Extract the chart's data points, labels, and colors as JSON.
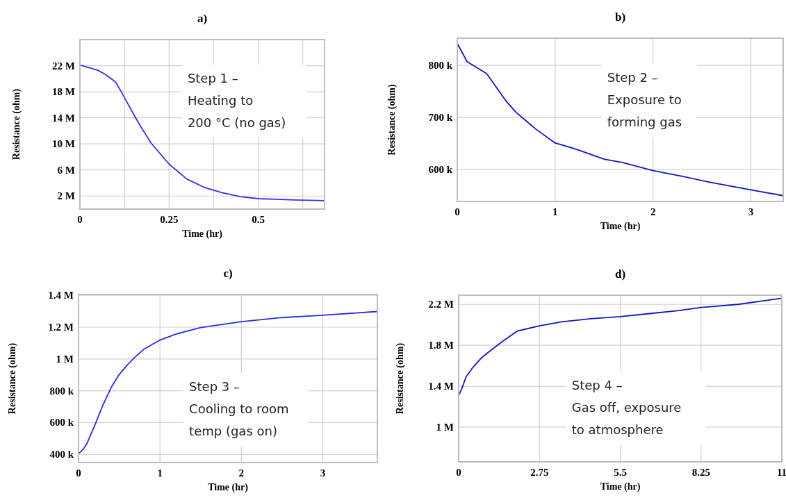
{
  "chart_data": [
    {
      "type": "line",
      "title": "a)",
      "xlabel": "Time (hr)",
      "ylabel": "Resistance (ohm)",
      "annotations": [
        "Step 1 –\nHeating to\n200 °C (no gas)"
      ],
      "grid": true,
      "xlim": [
        0,
        0.686
      ],
      "ylim": [
        0,
        26000000
      ],
      "xticks": [
        0,
        {
          "value": 0.125,
          "label": null
        },
        0.25,
        {
          "value": 0.375,
          "label": null
        },
        0.5,
        {
          "value": 0.625,
          "label": null
        }
      ],
      "yticks": [
        {
          "value": 2000000,
          "label": "2 M"
        },
        {
          "value": 6000000,
          "label": "6 M"
        },
        {
          "value": 10000000,
          "label": "10 M"
        },
        {
          "value": 14000000,
          "label": "14 M"
        },
        {
          "value": 18000000,
          "label": "18 M"
        },
        {
          "value": 22000000,
          "label": "22 M"
        }
      ],
      "series": [
        {
          "color": "#3232dc",
          "x": [
            0,
            0.05,
            0.07,
            0.1,
            0.12,
            0.15,
            0.17,
            0.2,
            0.25,
            0.3,
            0.35,
            0.4,
            0.45,
            0.5,
            0.55,
            0.6,
            0.686
          ],
          "values": [
            22100000,
            21300000,
            20700000,
            19500000,
            17600000,
            14600000,
            12700000,
            10100000,
            6900000,
            4600000,
            3300000,
            2500000,
            1900000,
            1600000,
            1500000,
            1400000,
            1300000
          ]
        }
      ]
    },
    {
      "type": "line",
      "title": "b)",
      "xlabel": "Time (hr)",
      "ylabel": "Resistance (ohm)",
      "annotations": [
        "Step 2 –\nExposure to\nforming gas"
      ],
      "grid": true,
      "xlim": [
        0,
        3.33
      ],
      "ylim": [
        539000,
        852000
      ],
      "xticks": [
        0,
        1,
        2,
        3
      ],
      "yticks": [
        {
          "value": 600000,
          "label": "600 k"
        },
        {
          "value": 700000,
          "label": "700 k"
        },
        {
          "value": 800000,
          "label": "800 k"
        }
      ],
      "series": [
        {
          "color": "#1414c0",
          "x": [
            0,
            0.1,
            0.3,
            0.5,
            0.6,
            0.8,
            1.0,
            1.2,
            1.5,
            1.7,
            2.0,
            2.3,
            2.6,
            3.0,
            3.33
          ],
          "values": [
            842000,
            807000,
            784000,
            731000,
            710000,
            678000,
            651000,
            640000,
            620000,
            613000,
            598000,
            587000,
            575000,
            561000,
            550000
          ]
        }
      ]
    },
    {
      "type": "line",
      "title": "c)",
      "xlabel": "Time (hr)",
      "ylabel": "Resistance (ohm)",
      "annotations": [
        "Step 3 –\nCooling to room\ntemp (gas on)"
      ],
      "grid": true,
      "xlim": [
        0,
        3.67
      ],
      "ylim": [
        349000,
        1405000
      ],
      "xticks": [
        0,
        1,
        2,
        3
      ],
      "yticks": [
        {
          "value": 400000,
          "label": "400 k"
        },
        {
          "value": 600000,
          "label": "600 k"
        },
        {
          "value": 800000,
          "label": "800 k"
        },
        {
          "value": 1000000,
          "label": "1 M"
        },
        {
          "value": 1200000,
          "label": "1.2 M"
        },
        {
          "value": 1400000,
          "label": "1.4 M"
        }
      ],
      "series": [
        {
          "color": "#2a2ae0",
          "x": [
            0,
            0.05,
            0.1,
            0.2,
            0.3,
            0.4,
            0.5,
            0.6,
            0.7,
            0.8,
            1.0,
            1.2,
            1.5,
            2.0,
            2.5,
            3.0,
            3.67
          ],
          "values": [
            405000,
            428000,
            465000,
            584000,
            711000,
            820000,
            903000,
            963000,
            1015000,
            1060000,
            1119000,
            1157000,
            1197000,
            1234000,
            1260000,
            1275000,
            1298000
          ]
        }
      ]
    },
    {
      "type": "line",
      "title": "d)",
      "xlabel": "Time (hr)",
      "ylabel": "Resistance (ohm)",
      "annotations": [
        "Step 4 –\nGas off, exposure\nto atmosphere"
      ],
      "grid": true,
      "xlim": [
        0,
        11
      ],
      "ylim": [
        660000,
        2290000
      ],
      "xticks": [
        0,
        2.75,
        5.5,
        8.25,
        11
      ],
      "yticks": [
        {
          "value": 1000000,
          "label": "1 M"
        },
        {
          "value": 1400000,
          "label": "1.4 M"
        },
        {
          "value": 1800000,
          "label": "1.8 M"
        },
        {
          "value": 2200000,
          "label": "2.2 M"
        }
      ],
      "series": [
        {
          "color": "#1414c0",
          "x": [
            0,
            0.1,
            0.25,
            0.5,
            0.75,
            1,
            1.5,
            2,
            2.75,
            3.5,
            4.5,
            5.5,
            6.5,
            7.5,
            8.25,
            9.5,
            10.5,
            11
          ],
          "values": [
            1310000,
            1370000,
            1490000,
            1590000,
            1670000,
            1730000,
            1840000,
            1940000,
            1990000,
            2030000,
            2060000,
            2080000,
            2110000,
            2140000,
            2170000,
            2200000,
            2240000,
            2260000
          ]
        }
      ]
    }
  ]
}
